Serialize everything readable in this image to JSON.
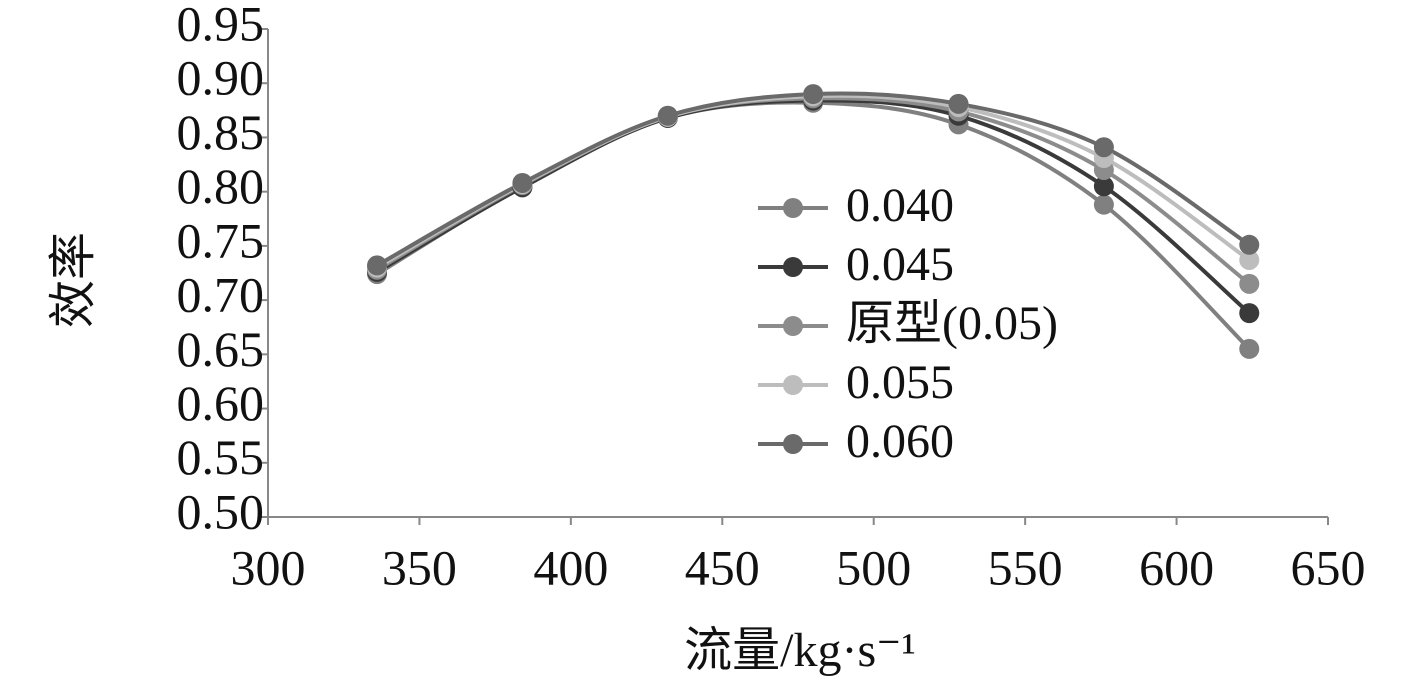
{
  "chart_data": {
    "type": "line",
    "xlabel": "流量/kg·s⁻¹",
    "ylabel": "效率",
    "x": [
      336,
      384,
      432,
      480,
      528,
      576,
      624
    ],
    "series": [
      {
        "name": "0.040",
        "color": "#808080",
        "values": [
          0.724,
          0.805,
          0.868,
          0.882,
          0.862,
          0.788,
          0.655
        ]
      },
      {
        "name": "0.045",
        "color": "#3a3a3a",
        "values": [
          0.726,
          0.804,
          0.868,
          0.884,
          0.87,
          0.805,
          0.688
        ]
      },
      {
        "name": "原型(0.05)",
        "color": "#8c8c8c",
        "values": [
          0.728,
          0.806,
          0.869,
          0.886,
          0.874,
          0.82,
          0.715
        ]
      },
      {
        "name": "0.055",
        "color": "#bdbdbd",
        "values": [
          0.73,
          0.807,
          0.869,
          0.888,
          0.878,
          0.831,
          0.737
        ]
      },
      {
        "name": "0.060",
        "color": "#6a6a6a",
        "values": [
          0.732,
          0.808,
          0.87,
          0.89,
          0.881,
          0.841,
          0.751
        ]
      }
    ],
    "xlim": [
      300,
      650
    ],
    "xticks": [
      300,
      350,
      400,
      450,
      500,
      550,
      600,
      650
    ],
    "ylim": [
      0.5,
      0.95
    ],
    "yticks": [
      {
        "value": 0.5,
        "label": "0.50"
      },
      {
        "value": 0.55,
        "label": "0.55"
      },
      {
        "value": 0.6,
        "label": "0.60"
      },
      {
        "value": 0.65,
        "label": "0.65"
      },
      {
        "value": 0.7,
        "label": "0.70"
      },
      {
        "value": 0.75,
        "label": "0.75"
      },
      {
        "value": 0.8,
        "label": "0.80"
      },
      {
        "value": 0.85,
        "label": "0.85"
      },
      {
        "value": 0.9,
        "label": "0.90"
      },
      {
        "value": 0.95,
        "label": "0.95"
      }
    ],
    "grid": false,
    "smooth": true
  }
}
